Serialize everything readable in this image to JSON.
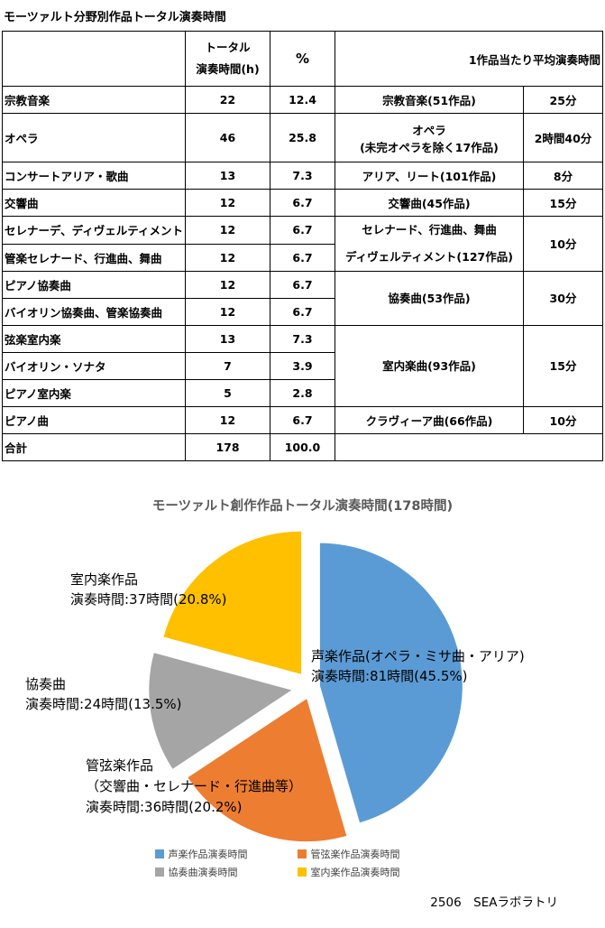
{
  "page": {
    "title": "モーツァルト分野別作品トータル演奏時間",
    "footer": "2506　SEAラボラトリ"
  },
  "table": {
    "header": {
      "total_label": "トータル\n演奏時間(h)",
      "percent_label": "%",
      "avg_label": "1作品当たり平均演奏時間"
    },
    "rows": [
      {
        "category": "宗教音楽",
        "hours": "22",
        "pct": "12.4"
      },
      {
        "category": "オペラ",
        "hours": "46",
        "pct": "25.8"
      },
      {
        "category": "コンサートアリア・歌曲",
        "hours": "13",
        "pct": "7.3"
      },
      {
        "category": "交響曲",
        "hours": "12",
        "pct": "6.7"
      },
      {
        "category": "セレナーデ、ディヴェルティメント",
        "hours": "12",
        "pct": "6.7"
      },
      {
        "category": "管楽セレナード、行進曲、舞曲",
        "hours": "12",
        "pct": "6.7"
      },
      {
        "category": "ピアノ協奏曲",
        "hours": "12",
        "pct": "6.7"
      },
      {
        "category": "バイオリン協奏曲、管楽協奏曲",
        "hours": "12",
        "pct": "6.7"
      },
      {
        "category": "弦楽室内楽",
        "hours": "13",
        "pct": "7.3"
      },
      {
        "category": "バイオリン・ソナタ",
        "hours": "7",
        "pct": "3.9"
      },
      {
        "category": "ピアノ室内楽",
        "hours": "5",
        "pct": "2.8"
      },
      {
        "category": "ピアノ曲",
        "hours": "12",
        "pct": "6.7"
      }
    ],
    "total_row": {
      "category": "合計",
      "hours": "178",
      "pct": "100.0"
    },
    "avg_cells": [
      {
        "label": "宗教音楽(51作品)",
        "time": "25分"
      },
      {
        "label": "オペラ\n(未完オペラを除く17作品)",
        "time": "2時間40分"
      },
      {
        "label": "アリア、リート(101作品)",
        "time": "8分"
      },
      {
        "label": "交響曲(45作品)",
        "time": "15分"
      },
      {
        "label": "セレナード、行進曲、舞曲\nディヴェルティメント(127作品)",
        "time": "10分"
      },
      {
        "label": "協奏曲(53作品)",
        "time": "30分"
      },
      {
        "label": "室内楽曲(93作品)",
        "time": "15分"
      },
      {
        "label": "クラヴィーア曲(66作品)",
        "time": "10分"
      }
    ]
  },
  "chart_data": {
    "type": "pie",
    "title": "モーツァルト創作作品トータル演奏時間(178時間)",
    "total_hours": 178,
    "unit": "時間",
    "legend_position": "bottom",
    "slices": [
      {
        "name": "声楽作品演奏時間",
        "hours": 81,
        "pct": 45.5,
        "color": "#5B9BD5",
        "explode": 10,
        "label": "声楽作品(オペラ・ミサ曲・アリア)\n演奏時間:81時間(45.5%)"
      },
      {
        "name": "管弦楽作品演奏時間",
        "hours": 36,
        "pct": 20.2,
        "color": "#ED7D31",
        "explode": 14,
        "label": "管弦楽作品\n（交響曲・セレナード・行進曲等）\n演奏時間:36時間(20.2%)"
      },
      {
        "name": "協奏曲演奏時間",
        "hours": 24,
        "pct": 13.5,
        "color": "#A5A5A5",
        "explode": 22,
        "label": "協奏曲\n演奏時間:24時間(13.5%)"
      },
      {
        "name": "室内楽作品演奏時間",
        "hours": 37,
        "pct": 20.8,
        "color": "#FFC000",
        "explode": 18,
        "label": "室内楽作品\n演奏時間:37時間(20.8%)"
      }
    ]
  }
}
